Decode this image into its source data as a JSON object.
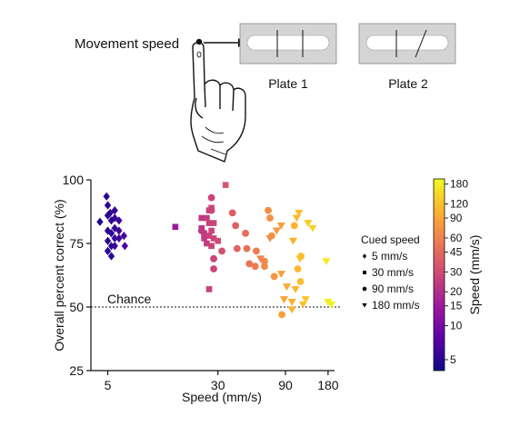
{
  "illustration": {
    "movement_label": "Movement speed",
    "plate1_label": "Plate 1",
    "plate2_label": "Plate 2"
  },
  "colors": {
    "colorbar_stops": [
      "#0d0887",
      "#5c01a6",
      "#9c179e",
      "#cc4778",
      "#ed7953",
      "#fdb32f",
      "#f0f921"
    ],
    "plate_fill": "#d4d4d4"
  },
  "colorbar": {
    "label": "Speed (mm/s)",
    "min": 4,
    "max": 200,
    "scale": "log",
    "ticks": [
      "5",
      "10",
      "15",
      "20",
      "30",
      "45",
      "60",
      "90",
      "120",
      "180"
    ]
  },
  "legend": {
    "title": "Cued speed",
    "placement": "right",
    "entries": [
      {
        "marker": "diamond",
        "label": "5 mm/s"
      },
      {
        "marker": "square",
        "label": "30 mm/s"
      },
      {
        "marker": "circle",
        "label": "90 mm/s"
      },
      {
        "marker": "triangle-down",
        "label": "180 mm/s"
      }
    ]
  },
  "chart_data": {
    "type": "scatter",
    "xlabel": "Speed (mm/s)",
    "ylabel": "Overall percent correct (%)",
    "xscale": "log",
    "xlim": [
      3.8,
      200
    ],
    "ylim": [
      25,
      100
    ],
    "xticks": [
      "5",
      "30",
      "90",
      "180"
    ],
    "yticks": [
      "25",
      "50",
      "75",
      "100"
    ],
    "reference_line": {
      "y": 50,
      "label": "Chance",
      "style": "dotted"
    },
    "series": [
      {
        "name": "5 mm/s",
        "marker": "diamond",
        "points": [
          [
            4.4,
            83.5
          ],
          [
            4.9,
            93.5
          ],
          [
            5.0,
            90
          ],
          [
            5.0,
            86
          ],
          [
            5.0,
            80
          ],
          [
            5.0,
            76
          ],
          [
            5.0,
            72
          ],
          [
            5.2,
            87
          ],
          [
            5.3,
            84
          ],
          [
            5.3,
            79
          ],
          [
            5.3,
            74
          ],
          [
            5.3,
            70
          ],
          [
            5.6,
            88
          ],
          [
            5.6,
            85
          ],
          [
            5.6,
            81
          ],
          [
            5.6,
            77
          ],
          [
            5.6,
            74
          ],
          [
            6.0,
            84
          ],
          [
            6.0,
            80
          ],
          [
            6.0,
            77
          ],
          [
            6.5,
            78
          ],
          [
            6.6,
            74
          ]
        ]
      },
      {
        "name": "30 mm/s",
        "marker": "square",
        "points": [
          [
            15,
            81.5
          ],
          [
            23,
            85
          ],
          [
            23,
            81
          ],
          [
            24,
            79
          ],
          [
            24,
            77
          ],
          [
            25,
            85
          ],
          [
            25,
            75
          ],
          [
            26,
            88
          ],
          [
            26,
            83
          ],
          [
            26,
            78
          ],
          [
            26,
            57
          ],
          [
            27,
            89
          ],
          [
            27,
            80
          ],
          [
            27,
            74
          ],
          [
            28,
            83
          ],
          [
            28,
            77
          ],
          [
            30,
            76
          ],
          [
            34,
            98
          ]
        ]
      },
      {
        "name": "90 mm/s",
        "marker": "circle",
        "points": [
          [
            23,
            80
          ],
          [
            27,
            93
          ],
          [
            27,
            88
          ],
          [
            28,
            69
          ],
          [
            28,
            65
          ],
          [
            32,
            72
          ],
          [
            38,
            87
          ],
          [
            40,
            82
          ],
          [
            41,
            73
          ],
          [
            47,
            79
          ],
          [
            48,
            73
          ],
          [
            50,
            67
          ],
          [
            55,
            66
          ],
          [
            56,
            72
          ],
          [
            64,
            68
          ],
          [
            64,
            66
          ],
          [
            68,
            88
          ],
          [
            70,
            85
          ],
          [
            72,
            78
          ],
          [
            75,
            62
          ],
          [
            85,
            47
          ],
          [
            104,
            82
          ],
          [
            110,
            65
          ],
          [
            115,
            60
          ],
          [
            116,
            70
          ]
        ]
      },
      {
        "name": "180 mm/s",
        "marker": "triangle-down",
        "points": [
          [
            60,
            69
          ],
          [
            70,
            77
          ],
          [
            78,
            80
          ],
          [
            84,
            82
          ],
          [
            84,
            63
          ],
          [
            88,
            53
          ],
          [
            92,
            58
          ],
          [
            100,
            52
          ],
          [
            100,
            49
          ],
          [
            102,
            76
          ],
          [
            106,
            57
          ],
          [
            108,
            85
          ],
          [
            112,
            87
          ],
          [
            114,
            69
          ],
          [
            120,
            51
          ],
          [
            125,
            53
          ],
          [
            130,
            83
          ],
          [
            140,
            81
          ],
          [
            180,
            52
          ],
          [
            190,
            51
          ],
          [
            175,
            68
          ]
        ]
      }
    ]
  }
}
